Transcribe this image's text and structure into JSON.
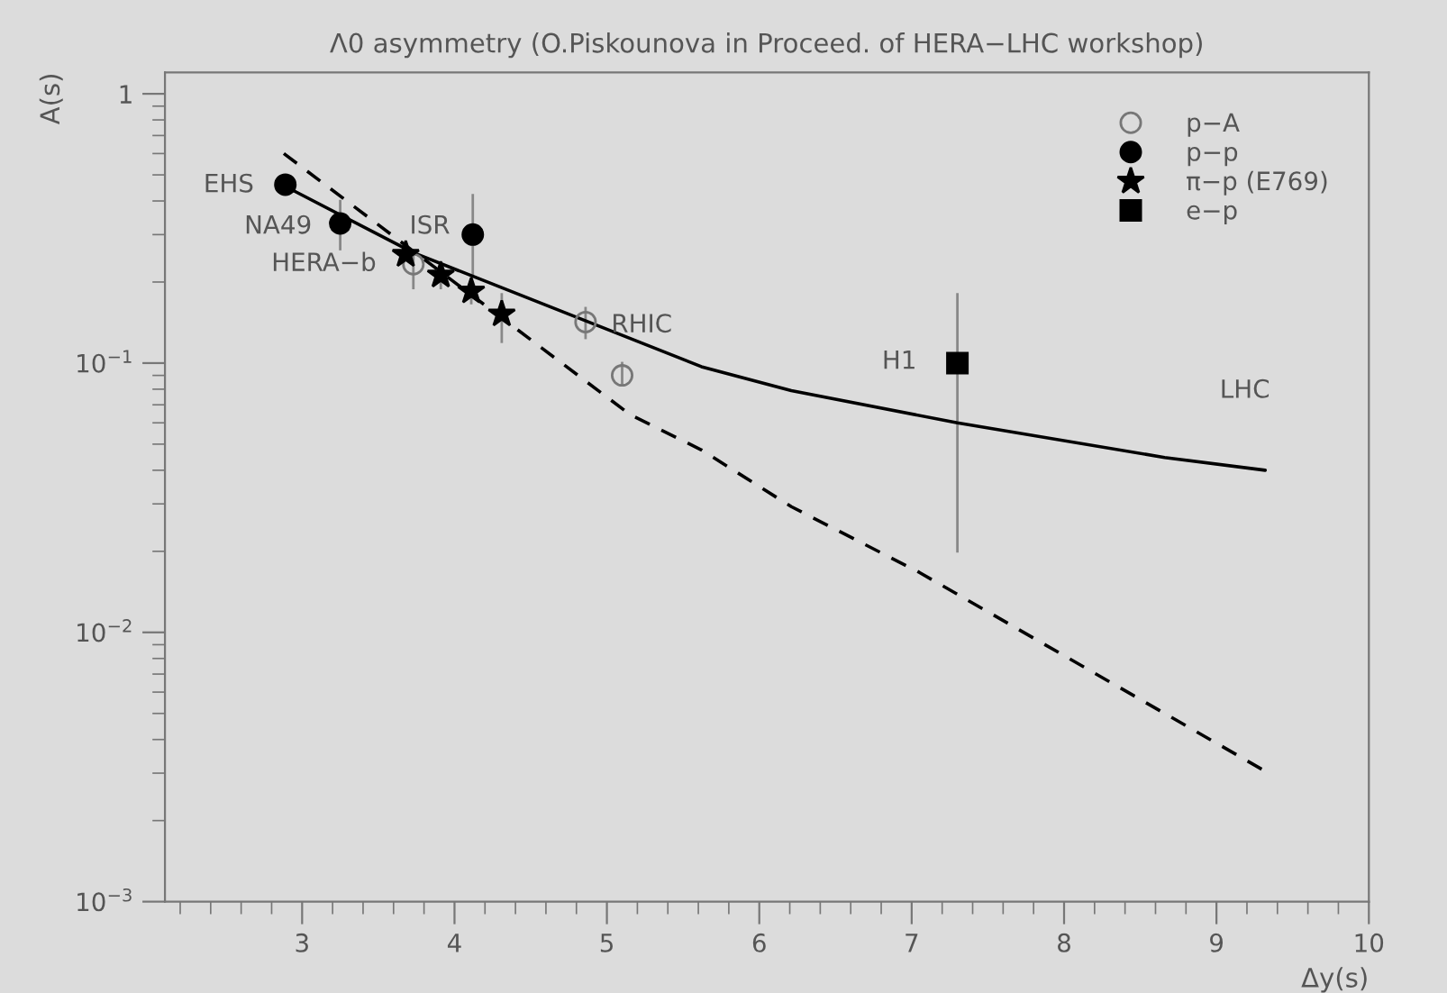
{
  "chart_data": {
    "type": "scatter",
    "title": "Λ0 asymmetry (O.Piskounova in Proceed. of HERA−LHC workshop)",
    "xlabel": "Δy(s)",
    "ylabel": "A(s)",
    "log": "y",
    "xlim": [
      2.1,
      10
    ],
    "xticks": [
      3,
      4,
      5,
      6,
      7,
      8,
      9,
      10
    ],
    "ylim": [
      0.001,
      1.2
    ],
    "yticks": [
      {
        "value": 0.001,
        "label": "10$^{−3}$"
      },
      {
        "value": 0.01,
        "label": "10$^{−2}$"
      },
      {
        "value": 0.1,
        "label": "10$^{−1}$"
      },
      1
    ],
    "grid": false,
    "legend": "top right",
    "series": [
      {
        "name": "p−A",
        "marker": "circle",
        "color": "#777777",
        "x": [
          3.73,
          4.86,
          5.1
        ],
        "values": [
          0.233,
          0.142,
          0.09
        ],
        "errors": [
          [
            0.19,
            0.257
          ],
          [
            0.124,
            0.16
          ],
          [
            0.084,
            0.1
          ]
        ]
      },
      {
        "name": "p−p",
        "marker": "circle",
        "color": "#000000",
        "x": [
          2.89,
          3.25,
          4.12
        ],
        "values": [
          0.46,
          0.33,
          0.3
        ],
        "errors": [
          null,
          [
            0.265,
            0.4
          ],
          [
            0.21,
            0.42
          ]
        ]
      },
      {
        "name": "π−p (E769)",
        "marker": "star",
        "color": "#000000",
        "x": [
          3.68,
          3.91,
          4.11,
          4.31
        ],
        "values": [
          0.253,
          0.212,
          0.185,
          0.152
        ],
        "errors": [
          null,
          [
            0.19,
            0.233
          ],
          [
            0.167,
            0.2
          ],
          [
            0.12,
            0.18
          ]
        ]
      },
      {
        "name": "e−p",
        "marker": "square",
        "color": "#000000",
        "x": [
          7.3
        ],
        "values": [
          0.1
        ],
        "errors": [
          [
            0.02,
            0.18
          ]
        ]
      },
      {
        "type": "line",
        "line_style": "solid",
        "color": "#000000",
        "x": [
          2.9,
          3.73,
          5.62,
          6.21,
          7.3,
          8.66,
          9.32
        ],
        "values": [
          0.45,
          0.257,
          0.097,
          0.079,
          0.06,
          0.0446,
          0.04
        ]
      },
      {
        "type": "line",
        "line_style": "dashed",
        "color": "#000000",
        "x": [
          2.88,
          5.15,
          5.62,
          6.21,
          7.05,
          9.32
        ],
        "values": [
          0.6,
          0.0645,
          0.0476,
          0.0293,
          0.0167,
          0.00305
        ]
      }
    ],
    "annotations": [
      "EHS",
      "NA49",
      "ISR",
      "HERA−b",
      "RHIC",
      "H1",
      "LHC"
    ]
  }
}
